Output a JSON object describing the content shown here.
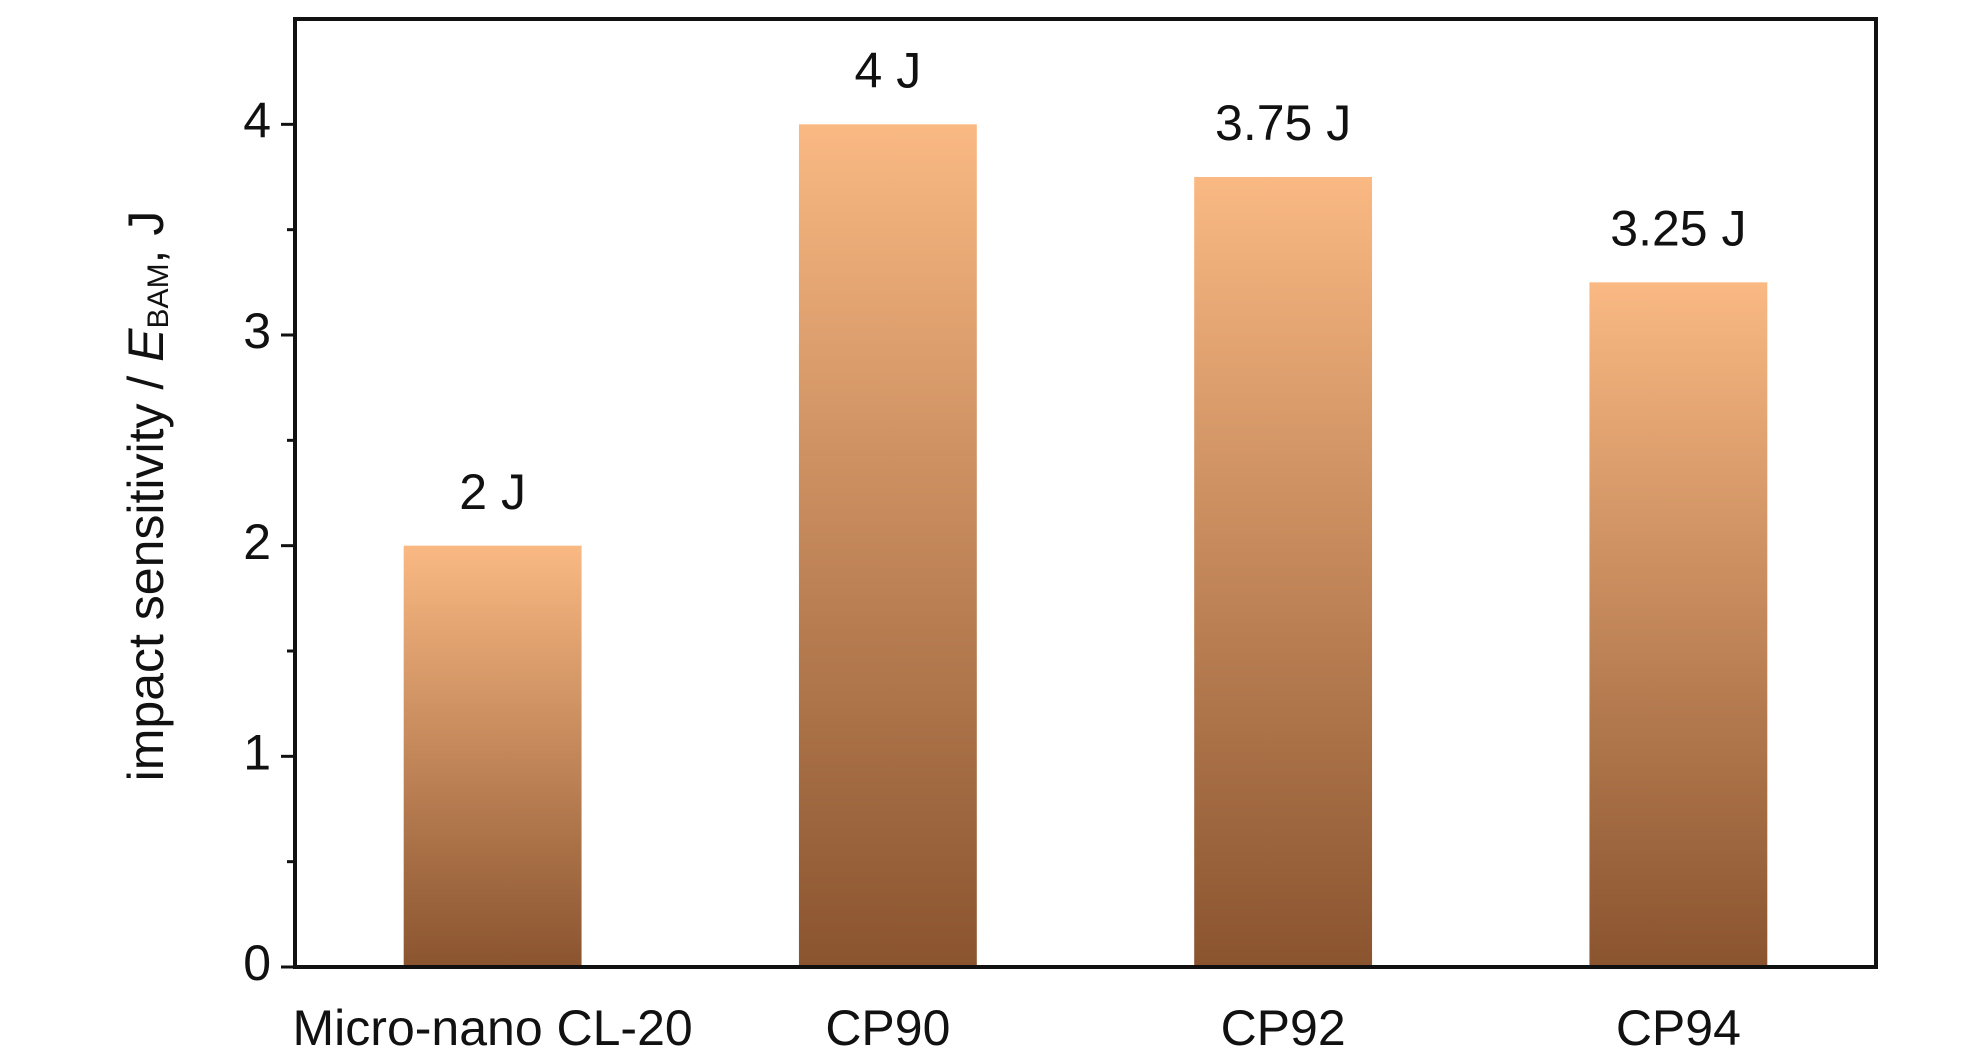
{
  "chart_data": {
    "type": "bar",
    "ylabel": {
      "prefix": "impact sensitivity / ",
      "symbol": "E",
      "subscript": "BAM",
      "suffix": ", J"
    },
    "categories": [
      "Micro-nano CL-20",
      "CP90",
      "CP92",
      "CP94"
    ],
    "values": [
      2,
      4,
      3.75,
      3.25
    ],
    "value_labels": [
      "2 J",
      "4 J",
      "3.75 J",
      "3.25 J"
    ],
    "gradient": [
      "#fab983",
      "#8a542f"
    ],
    "ylim": [
      0,
      4.5
    ],
    "yticks": [
      0,
      1,
      2,
      3,
      4
    ],
    "minor_yticks": [
      0.5,
      1.5,
      2.5,
      3.5
    ]
  }
}
